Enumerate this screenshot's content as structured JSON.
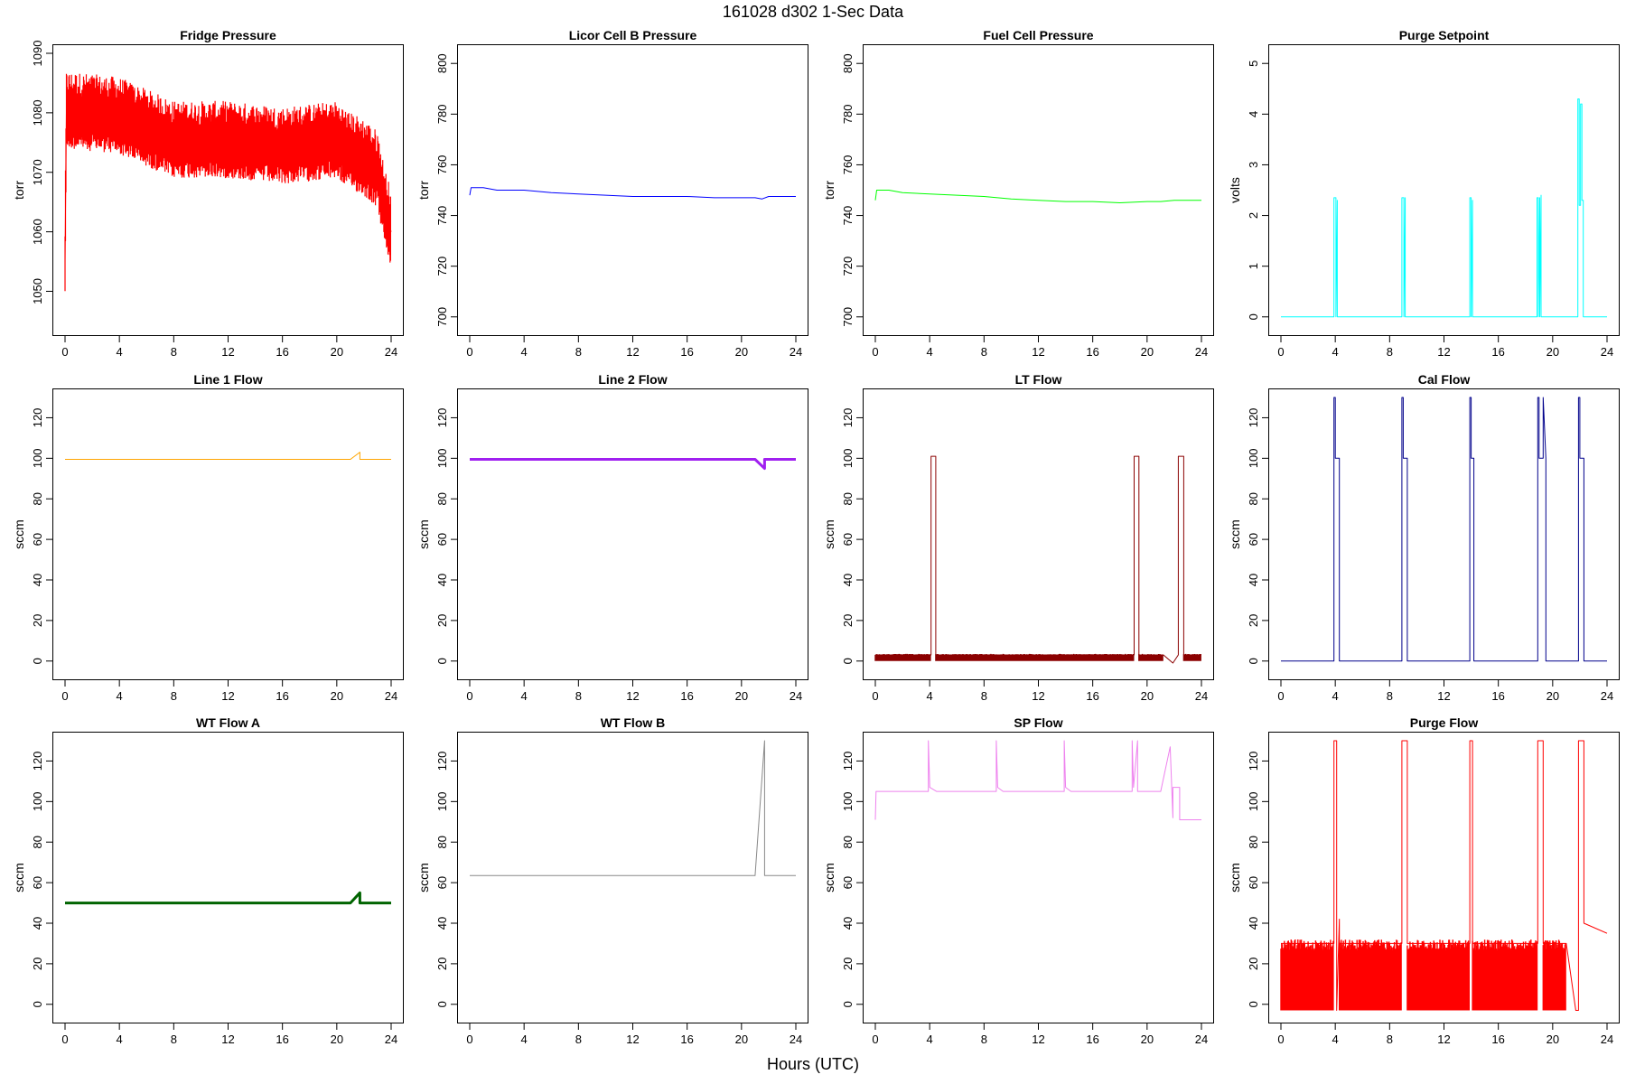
{
  "title": "161028    d302    1-Sec Data",
  "xlabel": "Hours (UTC)",
  "chart_data": [
    {
      "type": "line",
      "title": "Fridge Pressure",
      "ylabel": "torr",
      "xlim": [
        0,
        24
      ],
      "ylim": [
        1044,
        1090
      ],
      "xticks": [
        0,
        4,
        8,
        12,
        16,
        20,
        24
      ],
      "yticks": [
        1050,
        1060,
        1070,
        1080,
        1090
      ],
      "series": [
        {
          "color": "#ff0000",
          "fill": true,
          "band_lower": 1070,
          "x": [
            0,
            0.1,
            0.2,
            4,
            6,
            8,
            12,
            16,
            20,
            21,
            21.2,
            22,
            22.5,
            23,
            23.5,
            24
          ],
          "y": [
            1055,
            1080,
            1080,
            1079,
            1077,
            1075,
            1075,
            1074,
            1075,
            1073,
            1073,
            1072,
            1071,
            1070,
            1064,
            1060
          ]
        }
      ]
    },
    {
      "type": "line",
      "title": "Licor Cell B Pressure",
      "ylabel": "torr",
      "xlim": [
        0,
        24
      ],
      "ylim": [
        696,
        804
      ],
      "xticks": [
        0,
        4,
        8,
        12,
        16,
        20,
        24
      ],
      "yticks": [
        700,
        720,
        740,
        760,
        780,
        800
      ],
      "series": [
        {
          "color": "#0000ff",
          "x": [
            0,
            0.1,
            1,
            2,
            4,
            6,
            8,
            10,
            12,
            14,
            16,
            18,
            20,
            21,
            21.5,
            22,
            24
          ],
          "y": [
            748,
            751,
            751,
            750,
            750,
            749,
            748.5,
            748,
            747.5,
            747.5,
            747.5,
            747,
            747,
            747,
            746.5,
            747.5,
            747.5
          ]
        }
      ]
    },
    {
      "type": "line",
      "title": "Fuel Cell Pressure",
      "ylabel": "torr",
      "xlim": [
        0,
        24
      ],
      "ylim": [
        696,
        804
      ],
      "xticks": [
        0,
        4,
        8,
        12,
        16,
        20,
        24
      ],
      "yticks": [
        700,
        720,
        740,
        760,
        780,
        800
      ],
      "series": [
        {
          "color": "#00ff00",
          "x": [
            0,
            0.1,
            1,
            2,
            4,
            6,
            8,
            10,
            12,
            14,
            16,
            18,
            20,
            21,
            22,
            24
          ],
          "y": [
            746,
            750,
            750,
            749,
            748.5,
            748,
            747.5,
            746.5,
            746,
            745.5,
            745.5,
            745,
            745.5,
            745.5,
            746,
            746
          ]
        }
      ]
    },
    {
      "type": "line",
      "title": "Purge Setpoint",
      "ylabel": "volts",
      "xlim": [
        0,
        24
      ],
      "ylim": [
        -0.2,
        5.2
      ],
      "xticks": [
        0,
        4,
        8,
        12,
        16,
        20,
        24
      ],
      "yticks": [
        0,
        1,
        2,
        3,
        4,
        5
      ],
      "series": [
        {
          "color": "#00ffff",
          "x": [
            0,
            3.9,
            3.9,
            4.05,
            4.05,
            4.15,
            4.15,
            8.9,
            8.9,
            9.05,
            9.05,
            9.15,
            9.15,
            13.9,
            13.9,
            14,
            14,
            14.1,
            14.1,
            18.85,
            18.85,
            18.95,
            18.95,
            19.05,
            19.05,
            19.15,
            19.15,
            21.85,
            21.85,
            21.95,
            21.95,
            22.05,
            22.05,
            22.15,
            22.15,
            22.25,
            22.25,
            24
          ],
          "y": [
            0,
            0,
            2.35,
            2.35,
            0,
            2.3,
            0,
            0,
            2.35,
            2.35,
            0,
            2.35,
            0,
            0,
            2.35,
            2.35,
            0,
            2.3,
            0,
            0,
            2.35,
            2.35,
            0,
            2.35,
            0,
            2.4,
            0,
            0,
            4.3,
            4.3,
            2.2,
            2.2,
            4.2,
            4.2,
            2.3,
            2.3,
            0,
            0
          ]
        }
      ]
    },
    {
      "type": "line",
      "title": "Line 1 Flow",
      "ylabel": "sccm",
      "xlim": [
        0,
        24
      ],
      "ylim": [
        -5,
        130
      ],
      "xticks": [
        0,
        4,
        8,
        12,
        16,
        20,
        24
      ],
      "yticks": [
        0,
        20,
        40,
        60,
        80,
        100,
        120
      ],
      "series": [
        {
          "color": "#ffa500",
          "x": [
            0,
            21,
            21.7,
            21.7,
            24
          ],
          "y": [
            99.5,
            99.5,
            103,
            99.5,
            99.5
          ]
        }
      ]
    },
    {
      "type": "line",
      "title": "Line 2 Flow",
      "ylabel": "sccm",
      "xlim": [
        0,
        24
      ],
      "ylim": [
        -5,
        130
      ],
      "xticks": [
        0,
        4,
        8,
        12,
        16,
        20,
        24
      ],
      "yticks": [
        0,
        20,
        40,
        60,
        80,
        100,
        120
      ],
      "series": [
        {
          "color": "#a020f0",
          "width": 3,
          "x": [
            0,
            21,
            21.7,
            21.7,
            24
          ],
          "y": [
            99.5,
            99.5,
            95,
            99.5,
            99.5
          ]
        }
      ]
    },
    {
      "type": "line",
      "title": "LT Flow",
      "ylabel": "sccm",
      "xlim": [
        0,
        24
      ],
      "ylim": [
        -5,
        130
      ],
      "xticks": [
        0,
        4,
        8,
        12,
        16,
        20,
        24
      ],
      "yticks": [
        0,
        20,
        40,
        60,
        80,
        100,
        120
      ],
      "series": [
        {
          "color": "#8b0000",
          "band_lower": 0,
          "band_upper": 3.5,
          "x": [
            0,
            4.1,
            4.1,
            4.1,
            4.45,
            4.45,
            4.45,
            19.05,
            19.05,
            19.05,
            19.4,
            19.4,
            19.4,
            21.2,
            21.2,
            21.9,
            22.3,
            22.3,
            22.3,
            22.7,
            22.7,
            22.7,
            24
          ],
          "y": [
            3,
            3,
            3,
            101,
            101,
            3,
            3,
            3,
            3,
            101,
            101,
            3,
            3,
            3,
            3,
            -1,
            3,
            3,
            101,
            101,
            3,
            3,
            3
          ]
        }
      ]
    },
    {
      "type": "line",
      "title": "Cal Flow",
      "ylabel": "sccm",
      "xlim": [
        0,
        24
      ],
      "ylim": [
        -5,
        130
      ],
      "xticks": [
        0,
        4,
        8,
        12,
        16,
        20,
        24
      ],
      "yticks": [
        0,
        20,
        40,
        60,
        80,
        100,
        120
      ],
      "series": [
        {
          "color": "#00008b",
          "x": [
            0,
            3.9,
            3.9,
            4,
            4,
            4.3,
            4.3,
            8.9,
            8.9,
            9,
            9,
            9.3,
            9.3,
            13.9,
            13.9,
            14,
            14,
            14.2,
            14.2,
            18.9,
            18.9,
            19,
            19,
            19.3,
            19.3,
            19.5,
            19.5,
            21.9,
            21.9,
            22,
            22,
            22.3,
            22.3,
            24
          ],
          "y": [
            0,
            0,
            130,
            130,
            100,
            100,
            0,
            0,
            130,
            130,
            100,
            100,
            0,
            0,
            130,
            130,
            100,
            100,
            0,
            0,
            130,
            130,
            100,
            100,
            130,
            100,
            0,
            0,
            130,
            130,
            100,
            100,
            0,
            0
          ]
        }
      ]
    },
    {
      "type": "line",
      "title": "WT Flow A",
      "ylabel": "sccm",
      "xlim": [
        0,
        24
      ],
      "ylim": [
        -5,
        130
      ],
      "xticks": [
        0,
        4,
        8,
        12,
        16,
        20,
        24
      ],
      "yticks": [
        0,
        20,
        40,
        60,
        80,
        100,
        120
      ],
      "series": [
        {
          "color": "#006400",
          "width": 3,
          "x": [
            0,
            21,
            21.7,
            21.7,
            24
          ],
          "y": [
            50,
            50,
            55,
            50,
            50
          ]
        }
      ]
    },
    {
      "type": "line",
      "title": "WT Flow B",
      "ylabel": "sccm",
      "xlim": [
        0,
        24
      ],
      "ylim": [
        -5,
        130
      ],
      "xticks": [
        0,
        4,
        8,
        12,
        16,
        20,
        24
      ],
      "yticks": [
        0,
        20,
        40,
        60,
        80,
        100,
        120
      ],
      "series": [
        {
          "color": "#888888",
          "x": [
            0,
            21,
            21.7,
            21.7,
            24
          ],
          "y": [
            63.5,
            63.5,
            130,
            63.5,
            63.5
          ]
        }
      ]
    },
    {
      "type": "line",
      "title": "SP Flow",
      "ylabel": "sccm",
      "xlim": [
        0,
        24
      ],
      "ylim": [
        -5,
        130
      ],
      "xticks": [
        0,
        4,
        8,
        12,
        16,
        20,
        24
      ],
      "yticks": [
        0,
        20,
        40,
        60,
        80,
        100,
        120
      ],
      "series": [
        {
          "color": "#ee82ee",
          "x": [
            0,
            0.05,
            3.9,
            3.9,
            4,
            4,
            4.5,
            8.9,
            8.9,
            9,
            9,
            9.4,
            13.9,
            13.9,
            14,
            14,
            14.4,
            18.9,
            18.9,
            19,
            19,
            19.3,
            19.3,
            19.5,
            21,
            21.7,
            21.9,
            21.9,
            22.4,
            22.4,
            24
          ],
          "y": [
            91,
            105,
            105,
            130,
            108,
            107,
            105,
            105,
            130,
            107,
            107,
            105,
            105,
            130,
            107,
            107,
            105,
            105,
            130,
            107,
            107,
            130,
            105,
            105,
            105,
            127,
            92,
            107,
            107,
            91,
            91
          ]
        }
      ]
    },
    {
      "type": "line",
      "title": "Purge Flow",
      "ylabel": "sccm",
      "xlim": [
        0,
        24
      ],
      "ylim": [
        -5,
        130
      ],
      "xticks": [
        0,
        4,
        8,
        12,
        16,
        20,
        24
      ],
      "yticks": [
        0,
        20,
        40,
        60,
        80,
        100,
        120
      ],
      "series": [
        {
          "color": "#ff0000",
          "band_lower": -3,
          "band_upper": 32,
          "x": [
            0,
            3.9,
            3.9,
            4.1,
            4.1,
            4.3,
            4.3,
            8.9,
            8.9,
            9.3,
            9.3,
            13.9,
            13.9,
            14.1,
            14.1,
            18.9,
            18.9,
            19.3,
            19.3,
            21,
            21.7,
            21.9,
            21.9,
            22.3,
            22.3,
            24
          ],
          "y": [
            30,
            30,
            130,
            130,
            -3,
            42,
            30,
            30,
            130,
            130,
            30,
            30,
            130,
            130,
            30,
            30,
            130,
            130,
            30,
            30,
            -3,
            -3,
            130,
            130,
            40,
            35
          ]
        }
      ]
    }
  ]
}
